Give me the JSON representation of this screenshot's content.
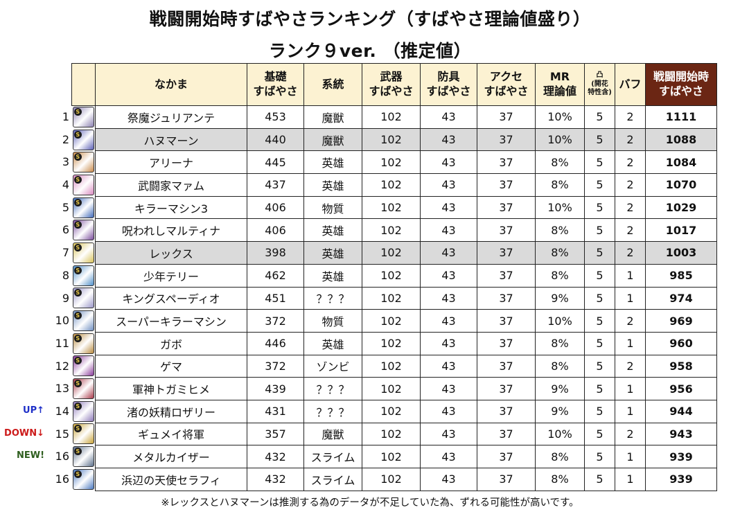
{
  "title_line1": "戦闘開始時すばやさランキング（すばやさ理論値盛り）",
  "title_line2": "ランク９ver. （推定値）",
  "headers": {
    "name": "なかま",
    "base": [
      "基礎",
      "すばやさ"
    ],
    "type": "系統",
    "weapon": [
      "武器",
      "すばやさ"
    ],
    "armor": [
      "防具",
      "すばやさ"
    ],
    "accessory": [
      "アクセ",
      "すばやさ"
    ],
    "mr": [
      "MR",
      "理論値"
    ],
    "convex": [
      "凸",
      "(開花",
      "特性含)"
    ],
    "buff": "バフ",
    "result": [
      "戦闘開始時",
      "すばやさ"
    ]
  },
  "badge_letter": "S",
  "rows": [
    {
      "rank": "1",
      "name": "祭魔ジュリアンテ",
      "base": "453",
      "type": "魔獣",
      "weapon": "102",
      "armor": "43",
      "acc": "37",
      "mr": "10%",
      "convex": "5",
      "buff": "2",
      "result": "1111",
      "hl": false,
      "mark": "",
      "icon_color": "#8a7fb0"
    },
    {
      "rank": "2",
      "name": "ハヌマーン",
      "base": "440",
      "type": "魔獣",
      "weapon": "102",
      "armor": "43",
      "acc": "37",
      "mr": "10%",
      "convex": "5",
      "buff": "2",
      "result": "1088",
      "hl": true,
      "mark": "",
      "icon_color": "#5b5fb5"
    },
    {
      "rank": "3",
      "name": "アリーナ",
      "base": "445",
      "type": "英雄",
      "weapon": "102",
      "armor": "43",
      "acc": "37",
      "mr": "8%",
      "convex": "5",
      "buff": "2",
      "result": "1084",
      "hl": false,
      "mark": "",
      "icon_color": "#c98a4a"
    },
    {
      "rank": "4",
      "name": "武闘家マァム",
      "base": "437",
      "type": "英雄",
      "weapon": "102",
      "armor": "43",
      "acc": "37",
      "mr": "8%",
      "convex": "5",
      "buff": "2",
      "result": "1070",
      "hl": false,
      "mark": "",
      "icon_color": "#d98ac0"
    },
    {
      "rank": "5",
      "name": "キラーマシン3",
      "base": "406",
      "type": "物質",
      "weapon": "102",
      "armor": "43",
      "acc": "37",
      "mr": "10%",
      "convex": "5",
      "buff": "2",
      "result": "1029",
      "hl": false,
      "mark": "",
      "icon_color": "#3e68b8"
    },
    {
      "rank": "6",
      "name": "呪われしマルティナ",
      "base": "406",
      "type": "英雄",
      "weapon": "102",
      "armor": "43",
      "acc": "37",
      "mr": "8%",
      "convex": "5",
      "buff": "2",
      "result": "1017",
      "hl": false,
      "mark": "",
      "icon_color": "#7a4c9c"
    },
    {
      "rank": "7",
      "name": "レックス",
      "base": "398",
      "type": "英雄",
      "weapon": "102",
      "armor": "43",
      "acc": "37",
      "mr": "8%",
      "convex": "5",
      "buff": "2",
      "result": "1003",
      "hl": true,
      "mark": "",
      "icon_color": "#d8c25a"
    },
    {
      "rank": "8",
      "name": "少年テリー",
      "base": "462",
      "type": "英雄",
      "weapon": "102",
      "armor": "43",
      "acc": "37",
      "mr": "8%",
      "convex": "5",
      "buff": "1",
      "result": "985",
      "hl": false,
      "mark": "",
      "icon_color": "#4f8fc9"
    },
    {
      "rank": "9",
      "name": "キングスペーディオ",
      "base": "451",
      "type": "？？？",
      "weapon": "102",
      "armor": "43",
      "acc": "37",
      "mr": "9%",
      "convex": "5",
      "buff": "1",
      "result": "974",
      "hl": false,
      "mark": "",
      "icon_color": "#9a96c8"
    },
    {
      "rank": "10",
      "name": "スーパーキラーマシン",
      "base": "372",
      "type": "物質",
      "weapon": "102",
      "armor": "43",
      "acc": "37",
      "mr": "10%",
      "convex": "5",
      "buff": "2",
      "result": "969",
      "hl": false,
      "mark": "",
      "icon_color": "#6e8ec0"
    },
    {
      "rank": "11",
      "name": "ガボ",
      "base": "446",
      "type": "英雄",
      "weapon": "102",
      "armor": "43",
      "acc": "37",
      "mr": "8%",
      "convex": "5",
      "buff": "1",
      "result": "960",
      "hl": false,
      "mark": "",
      "icon_color": "#b88a3e"
    },
    {
      "rank": "12",
      "name": "ゲマ",
      "base": "372",
      "type": "ゾンビ",
      "weapon": "102",
      "armor": "43",
      "acc": "37",
      "mr": "8%",
      "convex": "5",
      "buff": "2",
      "result": "958",
      "hl": false,
      "mark": "",
      "icon_color": "#8a3a9a"
    },
    {
      "rank": "13",
      "name": "軍神トガミヒメ",
      "base": "439",
      "type": "？？？",
      "weapon": "102",
      "armor": "43",
      "acc": "37",
      "mr": "9%",
      "convex": "5",
      "buff": "1",
      "result": "956",
      "hl": false,
      "mark": "",
      "icon_color": "#a83848"
    },
    {
      "rank": "14",
      "name": "渚の妖精ロザリー",
      "base": "431",
      "type": "？？？",
      "weapon": "102",
      "armor": "43",
      "acc": "37",
      "mr": "9%",
      "convex": "5",
      "buff": "1",
      "result": "944",
      "hl": false,
      "mark": "UP↑",
      "mark_color": "#1e2fc8",
      "icon_color": "#8c78b8"
    },
    {
      "rank": "15",
      "name": "ギュメイ将軍",
      "base": "357",
      "type": "魔獣",
      "weapon": "102",
      "armor": "43",
      "acc": "37",
      "mr": "10%",
      "convex": "5",
      "buff": "2",
      "result": "943",
      "hl": false,
      "mark": "DOWN↓",
      "mark_color": "#cc1a1a",
      "icon_color": "#c8a238"
    },
    {
      "rank": "16",
      "name": "メタルカイザー",
      "base": "432",
      "type": "スライム",
      "weapon": "102",
      "armor": "43",
      "acc": "37",
      "mr": "8%",
      "convex": "5",
      "buff": "1",
      "result": "939",
      "hl": false,
      "mark": "NEW!",
      "mark_color": "#2e5e1e",
      "icon_color": "#5a6e8a"
    },
    {
      "rank": "16",
      "name": "浜辺の天使セラフィ",
      "base": "432",
      "type": "スライム",
      "weapon": "102",
      "armor": "43",
      "acc": "37",
      "mr": "8%",
      "convex": "5",
      "buff": "1",
      "result": "939",
      "hl": false,
      "mark": "",
      "icon_color": "#4a78c0"
    }
  ],
  "footnote": "※レックスとハヌマーンは推測する為のデータが不足していた為、ずれる可能性が高いです。"
}
